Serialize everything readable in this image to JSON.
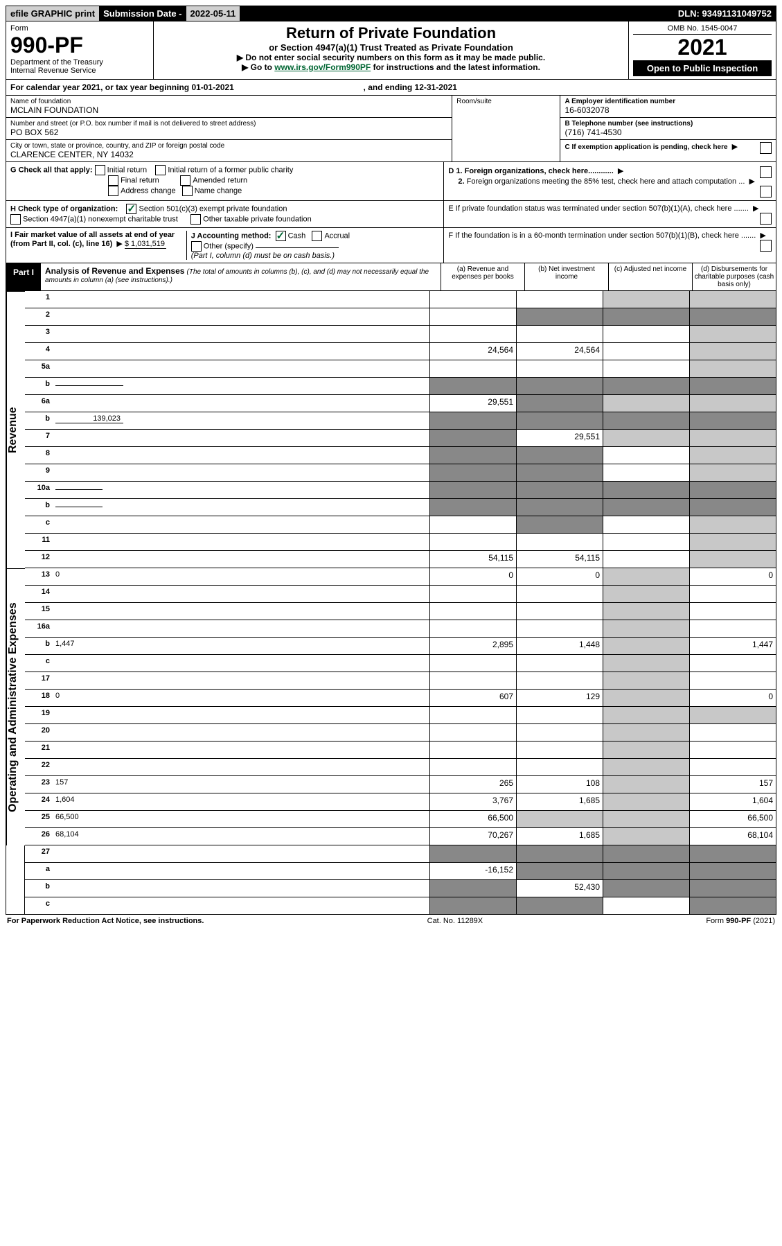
{
  "colors": {
    "ink": "#000000",
    "bg": "#ffffff",
    "grey_cell": "#c8c8c8",
    "dark_cell": "#888888",
    "link": "#006633",
    "top_grey": "#d0d0d0"
  },
  "top": {
    "efile": "efile GRAPHIC print",
    "subm_label": "Submission Date - ",
    "subm_date": "2022-05-11",
    "dln": "DLN: 93491131049752"
  },
  "header": {
    "form_pre": "Form",
    "form_no": "990-PF",
    "dept": "Department of the Treasury",
    "irs": "Internal Revenue Service",
    "title": "Return of Private Foundation",
    "subtitle": "or Section 4947(a)(1) Trust Treated as Private Foundation",
    "instr1": "▶ Do not enter social security numbers on this form as it may be made public.",
    "instr2_pre": "▶ Go to ",
    "instr2_link": "www.irs.gov/Form990PF",
    "instr2_post": " for instructions and the latest information.",
    "omb": "OMB No. 1545-0047",
    "year": "2021",
    "open": "Open to Public Inspection"
  },
  "cal": {
    "text_pre": "For calendar year 2021, or tax year beginning ",
    "begin": "01-01-2021",
    "mid": ", and ending ",
    "end": "12-31-2021"
  },
  "info": {
    "name_label": "Name of foundation",
    "name": "MCLAIN FOUNDATION",
    "addr_label": "Number and street (or P.O. box number if mail is not delivered to street address)",
    "addr": "PO BOX 562",
    "room_label": "Room/suite",
    "city_label": "City or town, state or province, country, and ZIP or foreign postal code",
    "city": "CLARENCE CENTER, NY  14032",
    "A_label": "A Employer identification number",
    "A": "16-6032078",
    "B_label": "B Telephone number (see instructions)",
    "B": "(716) 741-4530",
    "C": "C If exemption application is pending, check here",
    "D1": "D 1. Foreign organizations, check here............",
    "D2a": "2.",
    "D2b": "Foreign organizations meeting the 85% test, check here and attach computation ...",
    "E": "E  If private foundation status was terminated under section 507(b)(1)(A), check here .......",
    "F": "F  If the foundation is in a 60-month termination under section 507(b)(1)(B), check here .......",
    "Glabel": "G Check all that apply:",
    "G": {
      "initial": "Initial return",
      "initial_former": "Initial return of a former public charity",
      "final": "Final return",
      "amended": "Amended return",
      "addr_change": "Address change",
      "name_change": "Name change"
    },
    "Hlabel": "H Check type of organization:",
    "H": {
      "501c3": "Section 501(c)(3) exempt private foundation",
      "4947": "Section 4947(a)(1) nonexempt charitable trust",
      "other_tax": "Other taxable private foundation"
    },
    "I_label": "I Fair market value of all assets at end of year (from Part II, col. (c), line 16)",
    "I_val": "$  1,031,519",
    "J_label": "J Accounting method:",
    "J_cash": "Cash",
    "J_accrual": "Accrual",
    "J_other": "Other (specify)",
    "J_note": "(Part I, column (d) must be on cash basis.)"
  },
  "part1": {
    "label": "Part I",
    "title": "Analysis of Revenue and Expenses",
    "note": "(The total of amounts in columns (b), (c), and (d) may not necessarily equal the amounts in column (a) (see instructions).)",
    "cols": {
      "a": "(a)  Revenue and expenses per books",
      "b": "(b)  Net investment income",
      "c": "(c)  Adjusted net income",
      "d": "(d)  Disbursements for charitable purposes (cash basis only)"
    }
  },
  "side": {
    "revenue": "Revenue",
    "expenses": "Operating and Administrative Expenses"
  },
  "rows": [
    {
      "n": "1",
      "d": "",
      "a": "",
      "b": "",
      "c": "",
      "g_c": true,
      "g_d": true
    },
    {
      "n": "2",
      "d": "",
      "a": "",
      "b": "",
      "c": "",
      "dk_b": true,
      "dk_c": true,
      "dk_d": true,
      "dots": true
    },
    {
      "n": "3",
      "d": "",
      "a": "",
      "b": "",
      "c": "",
      "g_d": true
    },
    {
      "n": "4",
      "d": "",
      "a": "24,564",
      "b": "24,564",
      "c": "",
      "g_d": true,
      "dots": true
    },
    {
      "n": "5a",
      "d": "",
      "a": "",
      "b": "",
      "c": "",
      "g_d": true,
      "dots": true
    },
    {
      "n": "b",
      "d": "",
      "inline": "",
      "a": "",
      "b": "",
      "c": "",
      "dk_a": true,
      "dk_b": true,
      "dk_c": true,
      "dk_d": true
    },
    {
      "n": "6a",
      "d": "",
      "a": "29,551",
      "b": "",
      "c": "",
      "dk_b": true,
      "g_c": true,
      "g_d": true
    },
    {
      "n": "b",
      "d": "",
      "inline": "139,023",
      "a": "",
      "b": "",
      "c": "",
      "dk_a": true,
      "dk_b": true,
      "dk_c": true,
      "dk_d": true
    },
    {
      "n": "7",
      "d": "",
      "a": "",
      "b": "29,551",
      "c": "",
      "dk_a": true,
      "g_c": true,
      "g_d": true,
      "dots": true
    },
    {
      "n": "8",
      "d": "",
      "a": "",
      "b": "",
      "c": "",
      "dk_a": true,
      "dk_b": true,
      "g_d": true,
      "dots": true
    },
    {
      "n": "9",
      "d": "",
      "a": "",
      "b": "",
      "c": "",
      "dk_a": true,
      "dk_b": true,
      "g_d": true,
      "dots": true
    },
    {
      "n": "10a",
      "d": "",
      "inline_empty": true,
      "a": "",
      "b": "",
      "c": "",
      "dk_a": true,
      "dk_b": true,
      "dk_c": true,
      "dk_d": true
    },
    {
      "n": "b",
      "d": "",
      "inline_empty": true,
      "a": "",
      "b": "",
      "c": "",
      "dk_a": true,
      "dk_b": true,
      "dk_c": true,
      "dk_d": true,
      "dots": true
    },
    {
      "n": "c",
      "d": "",
      "a": "",
      "b": "",
      "c": "",
      "dk_b": true,
      "g_d": true,
      "dots": true
    },
    {
      "n": "11",
      "d": "",
      "a": "",
      "b": "",
      "c": "",
      "g_d": true,
      "dots": true
    },
    {
      "n": "12",
      "d": "",
      "a": "54,115",
      "b": "54,115",
      "c": "",
      "g_d": true,
      "dots": true
    }
  ],
  "rows_exp": [
    {
      "n": "13",
      "d": "0",
      "a": "0",
      "b": "0",
      "c": "",
      "g_c": true
    },
    {
      "n": "14",
      "d": "",
      "a": "",
      "b": "",
      "c": "",
      "g_c": true,
      "dots": true
    },
    {
      "n": "15",
      "d": "",
      "a": "",
      "b": "",
      "c": "",
      "g_c": true,
      "dots": true
    },
    {
      "n": "16a",
      "d": "",
      "a": "",
      "b": "",
      "c": "",
      "g_c": true,
      "dots": true
    },
    {
      "n": "b",
      "d": "1,447",
      "a": "2,895",
      "b": "1,448",
      "c": "",
      "g_c": true,
      "dots": true
    },
    {
      "n": "c",
      "d": "",
      "a": "",
      "b": "",
      "c": "",
      "g_c": true,
      "dots": true
    },
    {
      "n": "17",
      "d": "",
      "a": "",
      "b": "",
      "c": "",
      "g_c": true,
      "dots": true
    },
    {
      "n": "18",
      "d": "0",
      "a": "607",
      "b": "129",
      "c": "",
      "g_c": true,
      "dots": true
    },
    {
      "n": "19",
      "d": "",
      "a": "",
      "b": "",
      "c": "",
      "g_c": true,
      "g_d": true,
      "dots": true
    },
    {
      "n": "20",
      "d": "",
      "a": "",
      "b": "",
      "c": "",
      "g_c": true,
      "dots": true
    },
    {
      "n": "21",
      "d": "",
      "a": "",
      "b": "",
      "c": "",
      "g_c": true,
      "dots": true
    },
    {
      "n": "22",
      "d": "",
      "a": "",
      "b": "",
      "c": "",
      "g_c": true,
      "dots": true
    },
    {
      "n": "23",
      "d": "157",
      "a": "265",
      "b": "108",
      "c": "",
      "g_c": true,
      "dots": true
    },
    {
      "n": "24",
      "d": "1,604",
      "a": "3,767",
      "b": "1,685",
      "c": "",
      "g_c": true,
      "dots": true
    },
    {
      "n": "25",
      "d": "66,500",
      "a": "66,500",
      "b": "",
      "c": "",
      "g_b": true,
      "g_c": true,
      "dots": true
    },
    {
      "n": "26",
      "d": "68,104",
      "a": "70,267",
      "b": "1,685",
      "c": "",
      "g_c": true
    }
  ],
  "rows_net": [
    {
      "n": "27",
      "d": "",
      "a": "",
      "b": "",
      "c": "",
      "dk_a": true,
      "dk_b": true,
      "dk_c": true,
      "dk_d": true
    },
    {
      "n": "a",
      "d": "",
      "a": "-16,152",
      "b": "",
      "c": "",
      "dk_b": true,
      "dk_c": true,
      "dk_d": true
    },
    {
      "n": "b",
      "d": "",
      "a": "",
      "b": "52,430",
      "c": "",
      "dk_a": true,
      "dk_c": true,
      "dk_d": true
    },
    {
      "n": "c",
      "d": "",
      "a": "",
      "b": "",
      "c": "",
      "dk_a": true,
      "dk_b": true,
      "dk_d": true,
      "dots": true
    }
  ],
  "footer": {
    "left": "For Paperwork Reduction Act Notice, see instructions.",
    "mid": "Cat. No. 11289X",
    "right": "Form 990-PF (2021)"
  }
}
